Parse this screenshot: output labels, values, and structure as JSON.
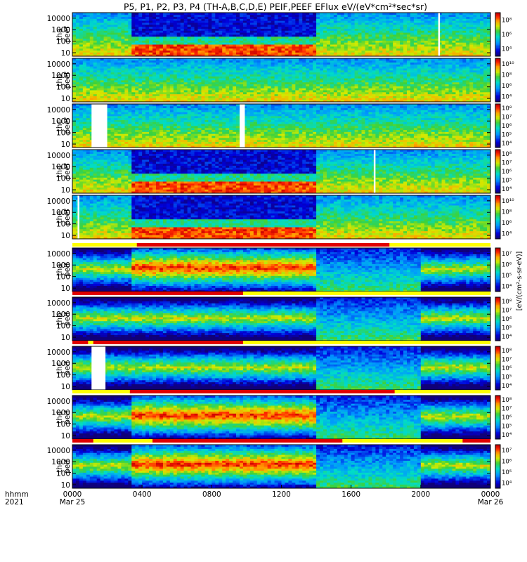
{
  "chart_data": {
    "type": "heatmap",
    "title": "P5, P1, P2, P3, P4 (TH-A,B,C,D,E) PEIF,PEEF EFlux eV/(eV*cm²*sec*sr)",
    "x_axis": {
      "unit_label": "hhmm",
      "year_label": "2021",
      "ticks": [
        "0000",
        "0400",
        "0800",
        "1200",
        "1600",
        "2000",
        "0000"
      ],
      "tick_hours": [
        0,
        4,
        8,
        12,
        16,
        20,
        24
      ],
      "date_labels": [
        {
          "hour": 0,
          "text": "Mar 25"
        },
        {
          "hour": 24,
          "text": "Mar 26"
        }
      ],
      "range_hours": [
        0,
        24
      ]
    },
    "y_axis": {
      "scale": "log",
      "unit": "eV",
      "ticks": [
        "10",
        "100",
        "1000",
        "10000"
      ],
      "range_ev": [
        5,
        30000
      ]
    },
    "colorbar_label": "[eV/(cm²-s-sr-eV)]",
    "panels": [
      {
        "probe": "tha",
        "species": "peef",
        "label": [
          "tha",
          "peef"
        ],
        "zmax": 100000000.0,
        "zmin": 1000.0,
        "cb_ticks": [
          "10⁴",
          "10⁶",
          "10⁸"
        ],
        "gaps": [
          [
            21.0,
            21.1
          ]
        ],
        "quiet": [
          [
            3.5,
            14.0
          ]
        ]
      },
      {
        "probe": "thb",
        "species": "peef",
        "label": [
          "thb",
          "peef"
        ],
        "zmax": 10000000000.0,
        "zmin": 10000.0,
        "cb_ticks": [
          "10⁴",
          "10⁶",
          "10⁸",
          "10¹⁰"
        ],
        "gaps": [],
        "quiet": []
      },
      {
        "probe": "thc",
        "species": "peef",
        "label": [
          "thc",
          "peef"
        ],
        "zmax": 1000000000.0,
        "zmin": 10000.0,
        "cb_ticks": [
          "10⁴",
          "10⁵",
          "10⁶",
          "10⁷",
          "10⁸"
        ],
        "gaps": [
          [
            1.1,
            2.0
          ],
          [
            9.6,
            9.9
          ]
        ],
        "quiet": []
      },
      {
        "probe": "thd",
        "species": "peef",
        "label": [
          "thd",
          "peef"
        ],
        "zmax": 1000000000.0,
        "zmin": 10000.0,
        "cb_ticks": [
          "10⁴",
          "10⁵",
          "10⁶",
          "10⁷",
          "10⁸"
        ],
        "gaps": [
          [
            17.3,
            17.4
          ]
        ],
        "quiet": [
          [
            3.5,
            14.0
          ]
        ]
      },
      {
        "probe": "the",
        "species": "peef",
        "label": [
          "the",
          "peef"
        ],
        "zmax": 10000000000.0,
        "zmin": 10000.0,
        "cb_ticks": [
          "10⁴",
          "10⁶",
          "10⁸",
          "10¹⁰"
        ],
        "gaps": [
          [
            0.3,
            0.4
          ]
        ],
        "quiet": [
          [
            3.5,
            14.0
          ]
        ]
      },
      {
        "probe": "tha",
        "species": "peif",
        "label": [
          "tha",
          "peif"
        ],
        "zmax": 100000000.0,
        "zmin": 1000.0,
        "cb_ticks": [
          "10⁴",
          "10⁵",
          "10⁶",
          "10⁷"
        ],
        "gaps": [],
        "quiet": [
          [
            3.5,
            14.0
          ]
        ]
      },
      {
        "probe": "thb",
        "species": "peif",
        "label": [
          "thb",
          "peif"
        ],
        "zmax": 100000000.0,
        "zmin": 1000.0,
        "cb_ticks": [
          "10⁴",
          "10⁵",
          "10⁶",
          "10⁷",
          "10⁸"
        ],
        "gaps": [],
        "quiet": []
      },
      {
        "probe": "thc",
        "species": "peif",
        "label": [
          "thc",
          "peif"
        ],
        "zmax": 100000000.0,
        "zmin": 1000.0,
        "cb_ticks": [
          "10⁴",
          "10⁵",
          "10⁶",
          "10⁷",
          "10⁸"
        ],
        "gaps": [
          [
            1.1,
            1.9
          ]
        ],
        "quiet": []
      },
      {
        "probe": "thd",
        "species": "peif",
        "label": [
          "thd",
          "peif"
        ],
        "zmax": 100000000.0,
        "zmin": 1000.0,
        "cb_ticks": [
          "10⁴",
          "10⁵",
          "10⁶",
          "10⁷",
          "10⁸"
        ],
        "gaps": [],
        "quiet": [
          [
            3.5,
            14.0
          ]
        ]
      },
      {
        "probe": "the",
        "species": "peif",
        "label": [
          "the",
          "peif"
        ],
        "zmax": 100000000.0,
        "zmin": 1000.0,
        "cb_ticks": [
          "10⁴",
          "10⁵",
          "10⁶",
          "10⁷"
        ],
        "gaps": [],
        "quiet": [
          [
            3.5,
            14.0
          ]
        ]
      }
    ],
    "mode_bars": [
      {
        "above_panel": 5,
        "red": [
          [
            3.7,
            18.2
          ]
        ]
      },
      {
        "above_panel": 6,
        "red": [
          [
            0.0,
            9.8
          ]
        ]
      },
      {
        "above_panel": 7,
        "red": [
          [
            0.0,
            0.9
          ],
          [
            1.2,
            9.8
          ]
        ]
      },
      {
        "above_panel": 8,
        "red": [
          [
            3.3,
            18.5
          ]
        ]
      },
      {
        "above_panel": 9,
        "red": [
          [
            0.0,
            1.2
          ],
          [
            4.6,
            15.5
          ],
          [
            22.4,
            24.0
          ]
        ]
      }
    ]
  },
  "colors": {
    "background": "#ffffff",
    "axis": "#000000",
    "mode_bar_red": "#e00000",
    "mode_bar_yellow": "#ffff00",
    "gap": "#ffffff"
  }
}
